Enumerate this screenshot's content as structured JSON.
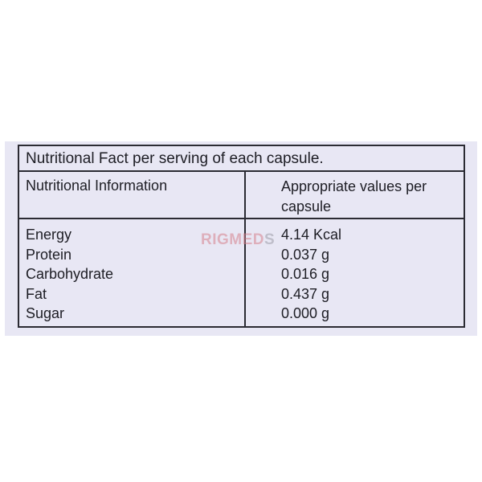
{
  "table": {
    "caption": "Nutritional Fact per serving of each capsule.",
    "header_left": "Nutritional Information",
    "header_right": "Appropriate values per capsule",
    "rows": [
      {
        "nutrient": "Energy",
        "amount": "4.14 Kcal"
      },
      {
        "nutrient": "Protein",
        "amount": "0.037 g"
      },
      {
        "nutrient": "Carbohydrate",
        "amount": "0.016 g"
      },
      {
        "nutrient": "Fat",
        "amount": "0.437 g"
      },
      {
        "nutrient": "Sugar",
        "amount": "0.000 g"
      }
    ]
  },
  "watermark": {
    "text_part1": "RIGMED",
    "text_part2": "S"
  },
  "colors": {
    "label_background": "#e8e7f4",
    "border": "#2b2b33",
    "text": "#1d1d24",
    "watermark": "#d6828c"
  }
}
